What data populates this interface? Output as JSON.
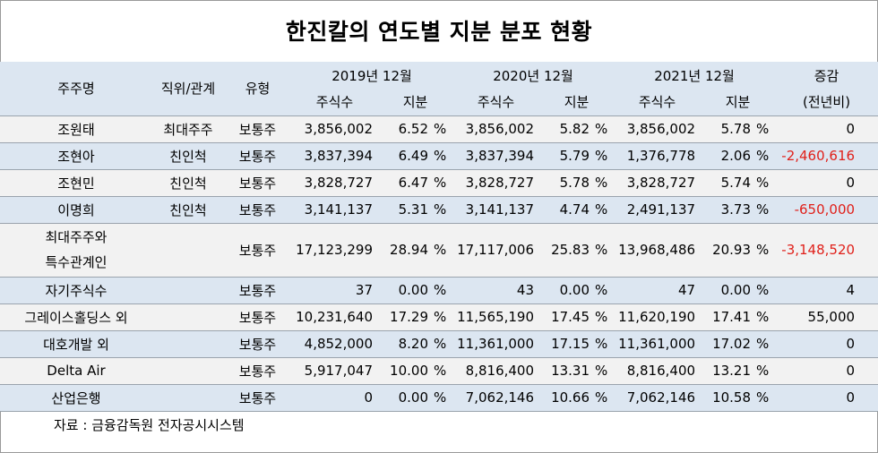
{
  "title": "한진칼의 연도별 지분 분포 현황",
  "headers": {
    "holder": "주주명",
    "position": "직위/관계",
    "type": "유형",
    "years": [
      "2019년 12월",
      "2020년 12월",
      "2021년 12월"
    ],
    "shares": "주식수",
    "stake": "지분",
    "change": "증감",
    "change_sub": "(전년비)"
  },
  "unit": "%",
  "rows": [
    {
      "name": "조원태",
      "position": "최대주주",
      "type": "보통주",
      "s2019": "3,856,002",
      "p2019": "6.52",
      "s2020": "3,856,002",
      "p2020": "5.82",
      "s2021": "3,856,002",
      "p2021": "5.78",
      "change": "0"
    },
    {
      "name": "조현아",
      "position": "친인척",
      "type": "보통주",
      "s2019": "3,837,394",
      "p2019": "6.49",
      "s2020": "3,837,394",
      "p2020": "5.79",
      "s2021": "1,376,778",
      "p2021": "2.06",
      "change": "-2,460,616"
    },
    {
      "name": "조현민",
      "position": "친인척",
      "type": "보통주",
      "s2019": "3,828,727",
      "p2019": "6.47",
      "s2020": "3,828,727",
      "p2020": "5.78",
      "s2021": "3,828,727",
      "p2021": "5.74",
      "change": "0"
    },
    {
      "name": "이명희",
      "position": "친인척",
      "type": "보통주",
      "s2019": "3,141,137",
      "p2019": "5.31",
      "s2020": "3,141,137",
      "p2020": "4.74",
      "s2021": "2,491,137",
      "p2021": "3.73",
      "change": "-650,000"
    },
    {
      "name": "최대주주와",
      "name2": "특수관계인",
      "position": "",
      "type": "보통주",
      "s2019": "17,123,299",
      "p2019": "28.94",
      "s2020": "17,117,006",
      "p2020": "25.83",
      "s2021": "13,968,486",
      "p2021": "20.93",
      "change": "-3,148,520"
    },
    {
      "name": "자기주식수",
      "position": "",
      "type": "보통주",
      "s2019": "37",
      "p2019": "0.00",
      "s2020": "43",
      "p2020": "0.00",
      "s2021": "47",
      "p2021": "0.00",
      "change": "4"
    },
    {
      "name": "그레이스홀딩스 외",
      "position": "",
      "type": "보통주",
      "s2019": "10,231,640",
      "p2019": "17.29",
      "s2020": "11,565,190",
      "p2020": "17.45",
      "s2021": "11,620,190",
      "p2021": "17.41",
      "change": "55,000"
    },
    {
      "name": "대호개발 외",
      "position": "",
      "type": "보통주",
      "s2019": "4,852,000",
      "p2019": "8.20",
      "s2020": "11,361,000",
      "p2020": "17.15",
      "s2021": "11,361,000",
      "p2021": "17.02",
      "change": "0"
    },
    {
      "name": "Delta Air",
      "position": "",
      "type": "보통주",
      "s2019": "5,917,047",
      "p2019": "10.00",
      "s2020": "8,816,400",
      "p2020": "13.31",
      "s2021": "8,816,400",
      "p2021": "13.21",
      "change": "0"
    },
    {
      "name": "산업은행",
      "position": "",
      "type": "보통주",
      "s2019": "0",
      "p2019": "0.00",
      "s2020": "7,062,146",
      "p2020": "10.66",
      "s2021": "7,062,146",
      "p2021": "10.58",
      "change": "0"
    }
  ],
  "colors": {
    "header_bg": "#dce6f1",
    "shade_bg": "#f2f2f2",
    "negative": "#e0201a"
  },
  "source": "자료 : 금융감독원 전자공시시스템"
}
